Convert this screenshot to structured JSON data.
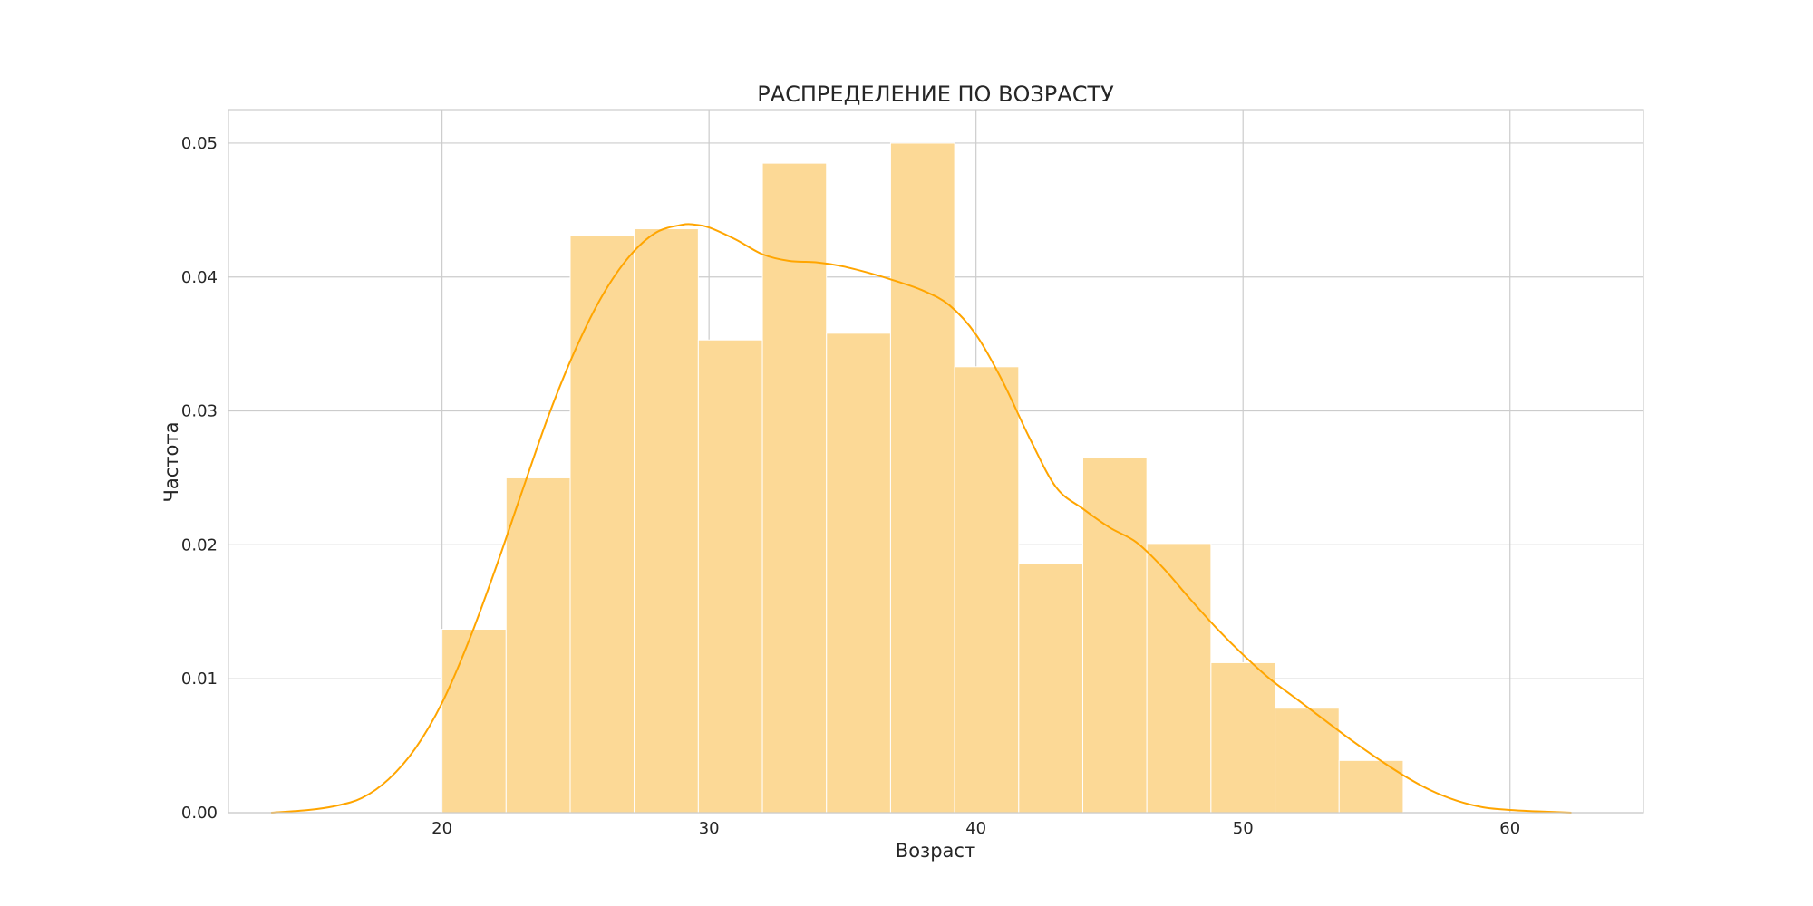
{
  "chart_data": {
    "type": "bar",
    "title": "РАСПРЕДЕЛЕНИЕ ПО ВОЗРАСТУ",
    "xlabel": "Возраст",
    "ylabel": "Частота",
    "xlim": [
      12,
      65
    ],
    "ylim": [
      0,
      0.0525
    ],
    "xticks": [
      20,
      30,
      40,
      50,
      60
    ],
    "yticks": [
      0.0,
      0.01,
      0.02,
      0.03,
      0.04,
      0.05
    ],
    "xtick_labels": [
      "20",
      "30",
      "40",
      "50",
      "60"
    ],
    "ytick_labels": [
      "0.00",
      "0.01",
      "0.02",
      "0.03",
      "0.04",
      "0.05"
    ],
    "grid": true,
    "bin_edges": [
      20.0,
      22.4,
      24.8,
      27.2,
      29.6,
      32.0,
      34.4,
      36.8,
      39.2,
      41.6,
      44.0,
      46.4,
      48.8,
      51.2,
      53.6,
      56.0
    ],
    "values": [
      0.0137,
      0.025,
      0.0431,
      0.0436,
      0.0353,
      0.0485,
      0.0358,
      0.05,
      0.0333,
      0.0186,
      0.0265,
      0.0201,
      0.0112,
      0.0078,
      0.0039
    ],
    "bar_color": "#fcd996",
    "kde": {
      "color": "#ffa500",
      "x": [
        13.6,
        15,
        16,
        17,
        18,
        19,
        20,
        21,
        22,
        23,
        24,
        25,
        26,
        27,
        28,
        29,
        29.5,
        30,
        31,
        32,
        33,
        34,
        35,
        36,
        37,
        38,
        39,
        40,
        41,
        42,
        43,
        44,
        45,
        46,
        47,
        48,
        49,
        50,
        51,
        52,
        53,
        54,
        55,
        56,
        57,
        58,
        59,
        60,
        61,
        62.3
      ],
      "y": [
        0.0,
        0.0002,
        0.0005,
        0.0011,
        0.0025,
        0.0048,
        0.0082,
        0.0128,
        0.0182,
        0.024,
        0.0297,
        0.0346,
        0.0386,
        0.0415,
        0.0433,
        0.0439,
        0.0439,
        0.0437,
        0.0428,
        0.0417,
        0.0412,
        0.0411,
        0.0408,
        0.0403,
        0.0397,
        0.039,
        0.0379,
        0.0357,
        0.0322,
        0.028,
        0.0243,
        0.0227,
        0.0213,
        0.0202,
        0.0183,
        0.016,
        0.0138,
        0.0118,
        0.01,
        0.0085,
        0.007,
        0.0055,
        0.0041,
        0.0028,
        0.0017,
        0.0009,
        0.0004,
        0.0002,
        0.0001,
        0.0
      ]
    }
  }
}
